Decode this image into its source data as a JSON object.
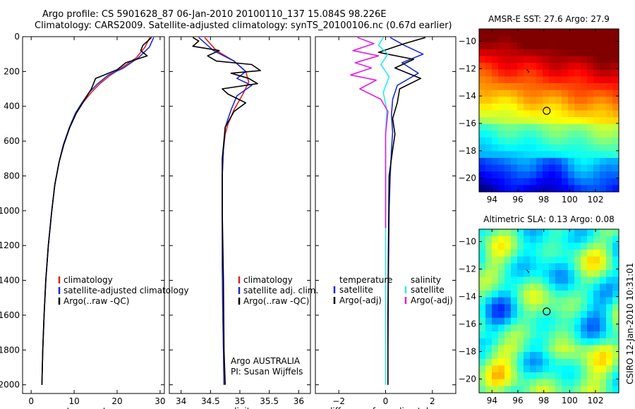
{
  "header": {
    "line1": "Argo profile: CS 5901628_87 06-Jan-2010 20100110_137 15.084S 98.226E",
    "line2": "Climatology: CARS2009. Satellite-adjusted climatology: synTS_20100106.nc (0.67d earlier)"
  },
  "side_label": "CSIRO 12-Jan-2010 10:31:01",
  "colors": {
    "climatology": "#e0201a",
    "satellite": "#1a2ad6",
    "argo": "#000000",
    "salinity_satellite": "#2ee8e8",
    "salinity_argo": "#e21ce2",
    "marker": "#000000"
  },
  "chart_data": [
    {
      "type": "line",
      "panel": "temperature",
      "xlabel": "temperature",
      "ylabel": "",
      "xlim": [
        -2,
        31
      ],
      "ylim": [
        2050,
        0
      ],
      "xticks": [
        0,
        10,
        20,
        30
      ],
      "yticks": [
        0,
        200,
        400,
        600,
        800,
        1000,
        1200,
        1400,
        1600,
        1800,
        2000
      ],
      "legend": [
        "climatology",
        "satellite-adjusted climatology",
        "Argo(..raw -QC)"
      ],
      "legend_position": "lower-right",
      "series": [
        {
          "name": "climatology",
          "color": "climatology",
          "x": [
            27.6,
            26.5,
            24.5,
            21,
            18.5,
            16,
            14,
            12,
            10.5,
            9,
            7.5,
            6.5,
            5.5,
            4.8,
            4,
            3.4,
            3,
            2.7,
            2.5
          ],
          "y": [
            5,
            60,
            120,
            180,
            220,
            270,
            320,
            380,
            440,
            520,
            620,
            720,
            850,
            1000,
            1200,
            1400,
            1600,
            1800,
            2000
          ]
        },
        {
          "name": "satellite-adjusted climatology",
          "color": "satellite",
          "x": [
            28.5,
            27.5,
            25,
            21.5,
            18,
            15.5,
            13.5,
            11.8,
            10.3,
            8.9,
            7.5,
            6.5,
            5.5,
            4.8,
            4,
            3.4,
            3,
            2.7,
            2.5
          ],
          "y": [
            5,
            60,
            120,
            180,
            220,
            270,
            320,
            380,
            440,
            520,
            620,
            720,
            850,
            1000,
            1200,
            1400,
            1600,
            1800,
            2000
          ]
        },
        {
          "name": "Argo(..raw -QC)",
          "color": "argo",
          "x": [
            28,
            26,
            25.5,
            27,
            22,
            20,
            15,
            14,
            12,
            10.5,
            9,
            7.6,
            6.5,
            5.5,
            4.8,
            4,
            3.4,
            3,
            2.7,
            2.5
          ],
          "y": [
            5,
            50,
            80,
            110,
            150,
            190,
            240,
            300,
            380,
            440,
            520,
            620,
            720,
            850,
            1000,
            1200,
            1400,
            1600,
            1800,
            2000
          ]
        }
      ]
    },
    {
      "type": "line",
      "panel": "salinity",
      "xlabel": "salinity",
      "ylabel": "",
      "xlim": [
        33.8,
        36.2
      ],
      "ylim": [
        2050,
        0
      ],
      "xticks": [
        34,
        34.5,
        35,
        35.5,
        36
      ],
      "xtick_labels": [
        "34",
        "34.5",
        "35",
        "35.5",
        "36"
      ],
      "legend": [
        "climatology",
        "satellite adj. clim.",
        "Argo(..raw -QC)"
      ],
      "legend_position": "lower-right",
      "annotation": [
        "Argo AUSTRALIA",
        "PI: Susan Wijffels"
      ],
      "series": [
        {
          "name": "climatology",
          "color": "climatology",
          "x": [
            34.4,
            34.6,
            34.9,
            35.1,
            35.15,
            35.05,
            34.9,
            34.8,
            34.75,
            34.72,
            34.7,
            34.7,
            34.7,
            34.71,
            34.72,
            34.73
          ],
          "y": [
            5,
            80,
            140,
            200,
            260,
            330,
            420,
            500,
            560,
            650,
            800,
            1000,
            1300,
            1600,
            1800,
            2000
          ]
        },
        {
          "name": "satellite adj. clim.",
          "color": "satellite",
          "x": [
            34.3,
            34.55,
            34.9,
            35.1,
            34.95,
            35.2,
            34.95,
            34.85,
            34.75,
            34.72,
            34.7,
            34.7,
            34.7,
            34.71,
            34.72,
            34.73
          ],
          "y": [
            5,
            80,
            140,
            200,
            240,
            280,
            340,
            420,
            520,
            650,
            800,
            1000,
            1300,
            1600,
            1800,
            2000
          ]
        },
        {
          "name": "Argo(..raw -QC)",
          "color": "argo",
          "x": [
            34.2,
            34.3,
            34.2,
            34.65,
            34.45,
            34.6,
            35.2,
            35.35,
            34.85,
            35.15,
            35.3,
            34.7,
            34.8,
            35.1,
            34.9,
            34.75,
            34.7,
            34.7,
            34.72,
            34.73,
            34.75
          ],
          "y": [
            5,
            25,
            55,
            80,
            110,
            140,
            160,
            195,
            210,
            240,
            270,
            300,
            330,
            380,
            430,
            520,
            700,
            1000,
            1400,
            1800,
            2000
          ]
        }
      ]
    },
    {
      "type": "line",
      "panel": "difference",
      "xlabel": "difference from climatology",
      "ylabel": "",
      "xlim": [
        -3,
        3
      ],
      "ylim": [
        2050,
        0
      ],
      "xticks": [
        -2,
        0,
        2
      ],
      "legend_headers": [
        "temperature",
        "salinity"
      ],
      "legend_columns": [
        [
          "satellite",
          "Argo(-adj)"
        ],
        [
          "satellite",
          "Argo(-adj)"
        ]
      ],
      "legend_position": "lower-center",
      "series": [
        {
          "name": "temperature satellite",
          "color": "satellite",
          "x": [
            0.2,
            0.8,
            1.6,
            0.7,
            1.4,
            0.5,
            0.3,
            0.25,
            0.3,
            0.25,
            0.2,
            0.15,
            0.12,
            0.1,
            0.1
          ],
          "y": [
            5,
            50,
            100,
            150,
            210,
            280,
            360,
            450,
            550,
            650,
            800,
            1000,
            1400,
            1800,
            2000
          ]
        },
        {
          "name": "temperature Argo(-adj)",
          "color": "argo",
          "x": [
            1.7,
            0.8,
            -0.3,
            1.2,
            0.4,
            1.5,
            0.6,
            0.5,
            0.3,
            0.4,
            0.3,
            0.15,
            0.12,
            0.1,
            0.1
          ],
          "y": [
            5,
            40,
            90,
            130,
            180,
            240,
            300,
            380,
            470,
            560,
            650,
            800,
            1200,
            1600,
            2000
          ]
        },
        {
          "name": "salinity satellite",
          "color": "salinity_satellite",
          "x": [
            -0.1,
            -0.3,
            0.1,
            -0.2,
            0.15,
            -0.1,
            0.05,
            0.0,
            0.0,
            0.0,
            0.0
          ],
          "y": [
            5,
            50,
            100,
            160,
            230,
            320,
            420,
            560,
            800,
            1400,
            2000
          ]
        },
        {
          "name": "salinity Argo(-adj)",
          "color": "salinity_argo",
          "x": [
            -1.2,
            -0.5,
            -1.4,
            -0.3,
            -1.3,
            -0.6,
            -1.5,
            -0.4,
            -1.1,
            -0.2,
            0.1,
            0.0,
            0.0,
            0.0
          ],
          "y": [
            5,
            40,
            80,
            110,
            150,
            180,
            220,
            250,
            300,
            360,
            430,
            560,
            800,
            1100
          ]
        }
      ]
    },
    {
      "type": "heatmap",
      "panel": "sst_map",
      "title": "AMSR-E SST: 27.6 Argo: 27.9",
      "xlim": [
        93,
        103.8
      ],
      "ylim": [
        -21,
        -9.1
      ],
      "xticks": [
        94,
        96,
        98,
        100,
        102
      ],
      "yticks": [
        -10,
        -12,
        -14,
        -16,
        -18,
        -20
      ],
      "marker": {
        "lon": 98.226,
        "lat": -15.084
      },
      "track_point": {
        "lon": 96.8,
        "lat": -12.2
      }
    },
    {
      "type": "heatmap",
      "panel": "sla_map",
      "title": "Altimetric SLA: 0.13 Argo: 0.08",
      "xlim": [
        93,
        103.8
      ],
      "ylim": [
        -21,
        -9.1
      ],
      "xticks": [
        94,
        96,
        98,
        100,
        102
      ],
      "yticks": [
        -10,
        -12,
        -14,
        -16,
        -18,
        -20
      ],
      "marker": {
        "lon": 98.226,
        "lat": -15.084
      },
      "track_point": {
        "lon": 96.8,
        "lat": -12.2
      }
    }
  ]
}
